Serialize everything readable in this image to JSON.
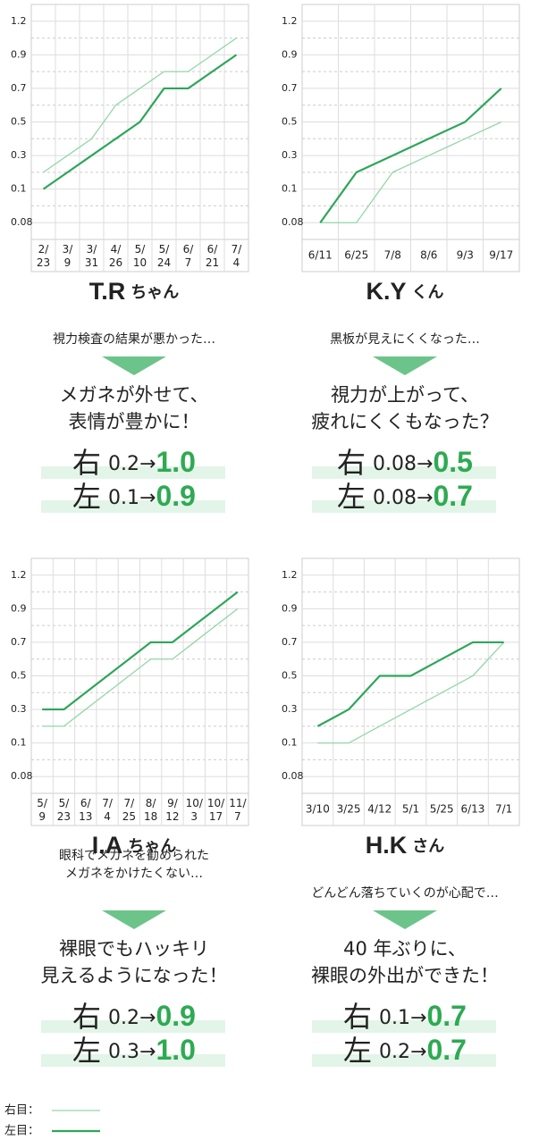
{
  "chart_data": [
    {
      "type": "line",
      "categories": [
        "2/23",
        "3/9",
        "3/31",
        "4/26",
        "5/10",
        "5/24",
        "6/7",
        "6/21",
        "7/4"
      ],
      "series": [
        {
          "name": "右目：",
          "color": "#93d7a8",
          "values": [
            0.2,
            0.3,
            0.4,
            0.6,
            0.7,
            0.8,
            0.8,
            0.9,
            1.0
          ]
        },
        {
          "name": "左目：",
          "color": "#2ea65a",
          "values": [
            0.1,
            0.2,
            0.3,
            0.4,
            0.5,
            0.7,
            0.7,
            0.8,
            0.9
          ]
        }
      ],
      "ylim": [
        0.08,
        1.2
      ],
      "yticks": [
        0.08,
        0.1,
        0.3,
        0.5,
        0.7,
        0.9,
        1.2
      ],
      "yminor": [
        0.09,
        0.2,
        0.4,
        0.6,
        0.8,
        1.0
      ],
      "grid": true
    },
    {
      "type": "line",
      "categories": [
        "6/11",
        "6/25",
        "7/8",
        "8/6",
        "9/3",
        "9/17"
      ],
      "series": [
        {
          "name": "右目：",
          "color": "#93d7a8",
          "values": [
            0.08,
            0.08,
            0.2,
            0.3,
            0.4,
            0.5
          ]
        },
        {
          "name": "左目：",
          "color": "#2ea65a",
          "values": [
            0.08,
            0.2,
            0.3,
            0.4,
            0.5,
            0.7
          ]
        }
      ],
      "ylim": [
        0.08,
        1.2
      ],
      "yticks": [
        0.08,
        0.1,
        0.3,
        0.5,
        0.7,
        0.9,
        1.2
      ],
      "yminor": [
        0.09,
        0.2,
        0.4,
        0.6,
        0.8,
        1.0
      ],
      "grid": true
    },
    {
      "type": "line",
      "categories": [
        "5/9",
        "5/23",
        "6/13",
        "7/4",
        "7/25",
        "8/18",
        "9/12",
        "10/3",
        "10/17",
        "11/7"
      ],
      "series": [
        {
          "name": "右目：",
          "color": "#93d7a8",
          "values": [
            0.2,
            0.2,
            0.3,
            0.4,
            0.5,
            0.6,
            0.6,
            0.7,
            0.8,
            0.9
          ]
        },
        {
          "name": "左目：",
          "color": "#2ea65a",
          "values": [
            0.3,
            0.3,
            0.4,
            0.5,
            0.6,
            0.7,
            0.7,
            0.8,
            0.9,
            1.0
          ]
        }
      ],
      "ylim": [
        0.08,
        1.2
      ],
      "yticks": [
        0.08,
        0.1,
        0.3,
        0.5,
        0.7,
        0.9,
        1.2
      ],
      "yminor": [
        0.09,
        0.2,
        0.4,
        0.6,
        0.8,
        1.0
      ],
      "grid": true
    },
    {
      "type": "line",
      "categories": [
        "3/10",
        "3/25",
        "4/12",
        "5/1",
        "5/25",
        "6/13",
        "7/1"
      ],
      "series": [
        {
          "name": "右目：",
          "color": "#93d7a8",
          "values": [
            0.1,
            0.1,
            0.2,
            0.3,
            0.4,
            0.5,
            0.7
          ]
        },
        {
          "name": "左目：",
          "color": "#2ea65a",
          "values": [
            0.2,
            0.3,
            0.5,
            0.5,
            0.6,
            0.7,
            0.7
          ]
        }
      ],
      "ylim": [
        0.08,
        1.2
      ],
      "yticks": [
        0.08,
        0.1,
        0.3,
        0.5,
        0.7,
        0.9,
        1.2
      ],
      "yminor": [
        0.09,
        0.2,
        0.4,
        0.6,
        0.8,
        1.0
      ],
      "grid": true
    }
  ],
  "cards": [
    {
      "name": "T.R",
      "suffix": "ちゃん",
      "problem": [
        "視力検査の結果が悪かった…"
      ],
      "outcome": [
        "メガネが外せて、",
        "表情が豊かに！"
      ],
      "results": [
        {
          "eye": "右",
          "from": "0.2",
          "arrow": "→",
          "to": "1.0"
        },
        {
          "eye": "左",
          "from": "0.1",
          "arrow": "→",
          "to": "0.9"
        }
      ]
    },
    {
      "name": "K.Y",
      "suffix": "くん",
      "problem": [
        "黒板が見えにくくなった…"
      ],
      "outcome": [
        "視力が上がって、",
        "疲れにくくもなった？"
      ],
      "results": [
        {
          "eye": "右",
          "from": "0.08",
          "arrow": "→",
          "to": "0.5"
        },
        {
          "eye": "左",
          "from": "0.08",
          "arrow": "→",
          "to": "0.7"
        }
      ]
    },
    {
      "name": "I.A",
      "suffix": "ちゃん",
      "problem": [
        "眼科でメガネを勧められた",
        "メガネをかけたくない…"
      ],
      "outcome": [
        "裸眼でもハッキリ",
        "見えるようになった！"
      ],
      "results": [
        {
          "eye": "右",
          "from": "0.2",
          "arrow": "→",
          "to": "0.9"
        },
        {
          "eye": "左",
          "from": "0.3",
          "arrow": "→",
          "to": "1.0"
        }
      ]
    },
    {
      "name": "H.K",
      "suffix": "さん",
      "problem": [
        "どんどん落ちていくのが心配で…"
      ],
      "outcome": [
        "40 年ぶりに、",
        "裸眼の外出ができた！"
      ],
      "results": [
        {
          "eye": "右",
          "from": "0.1",
          "arrow": "→",
          "to": "0.7"
        },
        {
          "eye": "左",
          "from": "0.2",
          "arrow": "→",
          "to": "0.7"
        }
      ]
    }
  ]
}
